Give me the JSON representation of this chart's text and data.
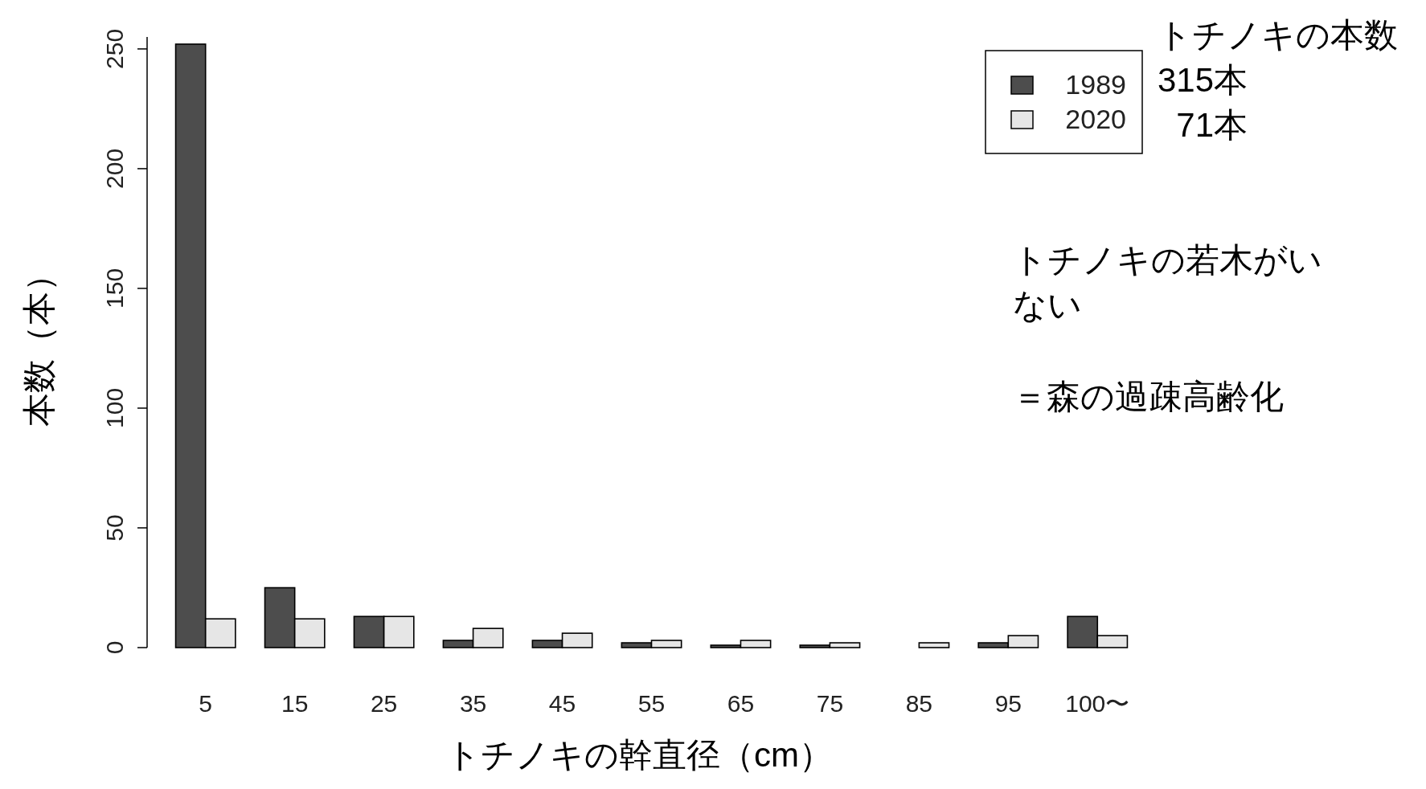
{
  "chart_data": {
    "type": "bar",
    "xlabel": "トチノキの幹直径（cm）",
    "ylabel": "本数（本）",
    "categories": [
      "5",
      "15",
      "25",
      "35",
      "45",
      "55",
      "65",
      "75",
      "85",
      "95",
      "100〜"
    ],
    "series": [
      {
        "name": "1989",
        "color": "#4d4d4d",
        "values": [
          252,
          25,
          13,
          3,
          3,
          2,
          1,
          1,
          0,
          2,
          13
        ]
      },
      {
        "name": "2020",
        "color": "#e6e6e6",
        "values": [
          12,
          12,
          13,
          8,
          6,
          3,
          3,
          2,
          2,
          5,
          5
        ]
      }
    ],
    "ylim": [
      0,
      255
    ],
    "yticks": [
      0,
      50,
      100,
      150,
      200,
      250
    ],
    "grid": false,
    "legend": "top right",
    "annotations": [
      "トチノキの本数\n315本\n  71本",
      "トチノキの若木がいない",
      "＝森の過疎高齢化"
    ]
  }
}
